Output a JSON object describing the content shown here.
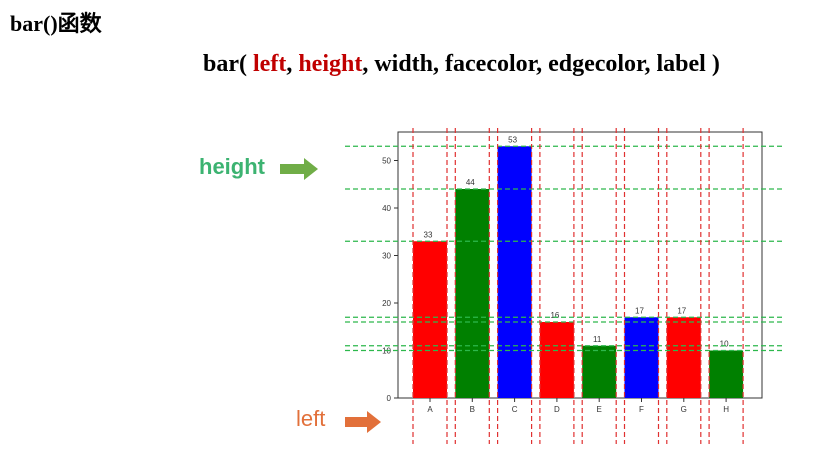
{
  "heading": {
    "title": "bar()函数",
    "signature_parts": [
      "bar( ",
      "left",
      ", ",
      "height",
      ", width, facecolor, edgecolor, label )"
    ]
  },
  "annotations": {
    "height_label": "height",
    "left_label": "left",
    "height_color": "#3cb371",
    "height_arrow_color": "#70ad47",
    "left_color": "#e2703a",
    "guide_green": "#2db84c",
    "guide_red": "#e03030"
  },
  "chart_data": {
    "type": "bar",
    "categories": [
      "A",
      "B",
      "C",
      "D",
      "E",
      "F",
      "G",
      "H"
    ],
    "values": [
      33,
      44,
      53,
      16,
      11,
      17,
      17,
      10
    ],
    "colors": [
      "#ff0000",
      "#008000",
      "#0000ff",
      "#ff0000",
      "#008000",
      "#0000ff",
      "#ff0000",
      "#008000"
    ],
    "ylim": [
      0,
      55
    ],
    "yticks": [
      0,
      10,
      20,
      30,
      40,
      50
    ],
    "title": "",
    "xlabel": "",
    "ylabel": "",
    "grid": false
  }
}
